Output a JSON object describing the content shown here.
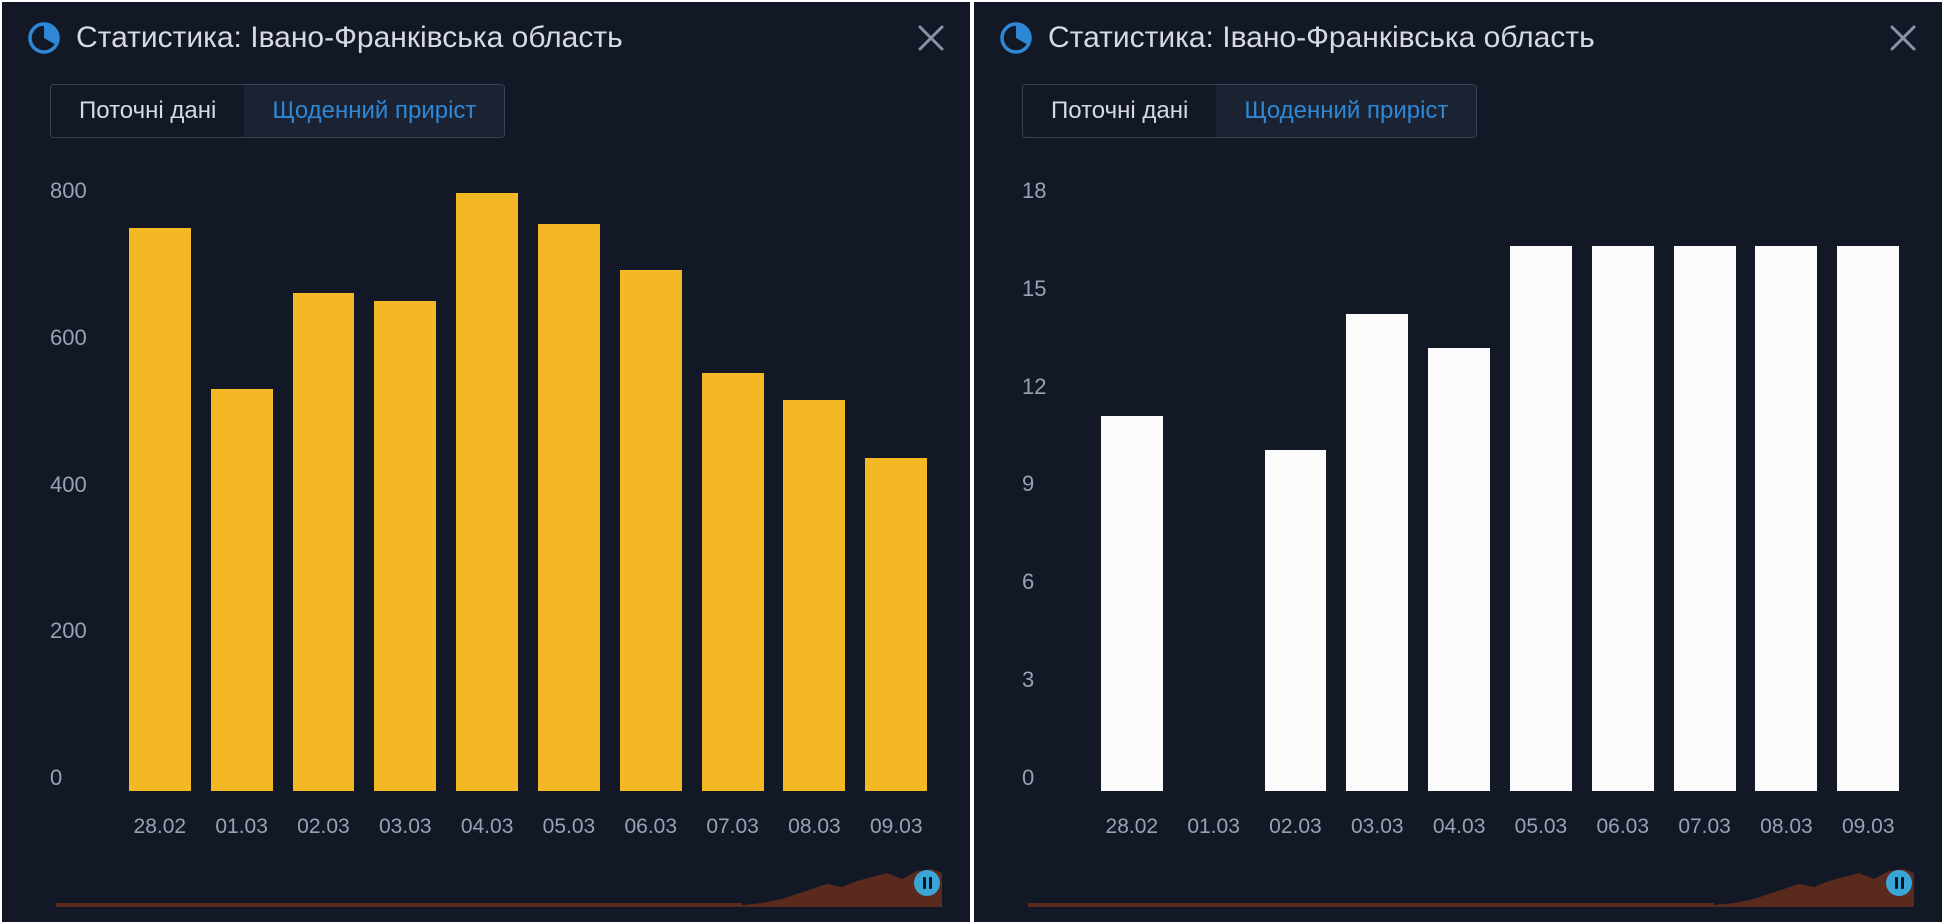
{
  "colors": {
    "panel_bg": "#121826",
    "title_text": "#d6dae2",
    "icon_accent": "#2f88d6",
    "close_icon": "#8a92a3",
    "tab_inactive_text": "#d6dae2",
    "tab_active_text": "#2f88d6",
    "tab_active_bg": "#1b2332",
    "axis_text": "#9aa2b2",
    "mini_fill": "#5a2a1c",
    "slider_handle": "#3aa6d8"
  },
  "left_panel": {
    "title": "Статистика: Івано-Франківська область",
    "tabs": {
      "inactive": "Поточні дані",
      "active": "Щоденний приріст"
    },
    "chart": {
      "type": "bar",
      "bar_color": "#f5b825",
      "ymax": 800,
      "yticks": [
        "800",
        "600",
        "400",
        "200",
        "0"
      ],
      "categories": [
        "28.02",
        "01.03",
        "02.03",
        "03.03",
        "04.03",
        "05.03",
        "06.03",
        "07.03",
        "08.03",
        "09.03"
      ],
      "values": [
        735,
        525,
        650,
        640,
        780,
        740,
        680,
        545,
        510,
        435
      ]
    }
  },
  "right_panel": {
    "title": "Статистика: Івано-Франківська область",
    "tabs": {
      "inactive": "Поточні дані",
      "active": "Щоденний приріст"
    },
    "chart": {
      "type": "bar",
      "bar_color": "#fbfbfb",
      "ymax": 18,
      "yticks": [
        "18",
        "15",
        "12",
        "9",
        "6",
        "3",
        "0"
      ],
      "categories": [
        "28.02",
        "01.03",
        "02.03",
        "03.03",
        "04.03",
        "05.03",
        "06.03",
        "07.03",
        "08.03",
        "09.03"
      ],
      "values": [
        11,
        0,
        10,
        14,
        13,
        16,
        16,
        16,
        16,
        16
      ]
    }
  }
}
